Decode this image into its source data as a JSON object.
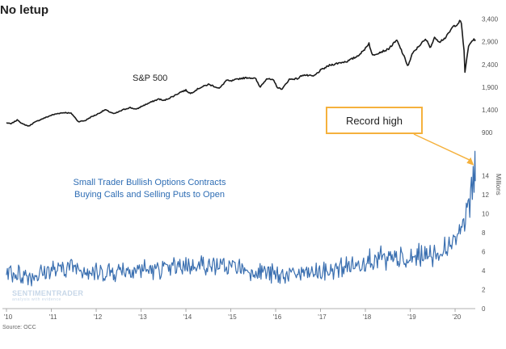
{
  "page": {
    "title": "No letup",
    "source": "Source: OCC",
    "callout": "Record high",
    "watermark": "SENTIMENTRADER",
    "watermark_sub": "analysis with evidence",
    "colors": {
      "sp": "#1a1a1a",
      "options": "#3a6fb0",
      "callout_border": "#f5b13d",
      "label": "#2e6db4"
    }
  },
  "chart_data": {
    "type": "line",
    "title": "No letup",
    "x_tick_labels": [
      "'10",
      "'11",
      "'12",
      "'13",
      "'14",
      "'15",
      "'16",
      "'17",
      "'18",
      "'19",
      "'20"
    ],
    "xlim": [
      2010,
      2020.45
    ],
    "panels": [
      {
        "name": "sp500",
        "series_label": "S&P 500",
        "ylim": [
          650,
          3500
        ],
        "yticks": [
          900,
          1400,
          1900,
          2400,
          2900,
          3400
        ],
        "ytick_labels": [
          "900",
          "1,400",
          "1,900",
          "2,400",
          "2,900",
          "3,400"
        ],
        "points": [
          [
            2010.0,
            1115
          ],
          [
            2010.1,
            1090
          ],
          [
            2010.25,
            1180
          ],
          [
            2010.35,
            1090
          ],
          [
            2010.5,
            1040
          ],
          [
            2010.6,
            1110
          ],
          [
            2010.75,
            1180
          ],
          [
            2010.9,
            1240
          ],
          [
            2011.0,
            1280
          ],
          [
            2011.15,
            1320
          ],
          [
            2011.3,
            1340
          ],
          [
            2011.45,
            1320
          ],
          [
            2011.6,
            1140
          ],
          [
            2011.75,
            1160
          ],
          [
            2011.9,
            1250
          ],
          [
            2012.0,
            1290
          ],
          [
            2012.2,
            1400
          ],
          [
            2012.4,
            1310
          ],
          [
            2012.6,
            1400
          ],
          [
            2012.75,
            1450
          ],
          [
            2012.9,
            1410
          ],
          [
            2013.0,
            1470
          ],
          [
            2013.2,
            1560
          ],
          [
            2013.4,
            1640
          ],
          [
            2013.5,
            1600
          ],
          [
            2013.7,
            1690
          ],
          [
            2013.9,
            1800
          ],
          [
            2014.0,
            1830
          ],
          [
            2014.1,
            1760
          ],
          [
            2014.3,
            1880
          ],
          [
            2014.5,
            1960
          ],
          [
            2014.6,
            1930
          ],
          [
            2014.75,
            1870
          ],
          [
            2014.9,
            2050
          ],
          [
            2015.0,
            2030
          ],
          [
            2015.2,
            2090
          ],
          [
            2015.4,
            2110
          ],
          [
            2015.55,
            2090
          ],
          [
            2015.65,
            1900
          ],
          [
            2015.8,
            2090
          ],
          [
            2015.95,
            2050
          ],
          [
            2016.05,
            1880
          ],
          [
            2016.15,
            1860
          ],
          [
            2016.3,
            2070
          ],
          [
            2016.5,
            2090
          ],
          [
            2016.6,
            2170
          ],
          [
            2016.85,
            2140
          ],
          [
            2017.0,
            2270
          ],
          [
            2017.2,
            2380
          ],
          [
            2017.4,
            2430
          ],
          [
            2017.6,
            2470
          ],
          [
            2017.8,
            2570
          ],
          [
            2017.95,
            2690
          ],
          [
            2018.08,
            2870
          ],
          [
            2018.15,
            2600
          ],
          [
            2018.3,
            2660
          ],
          [
            2018.5,
            2730
          ],
          [
            2018.7,
            2930
          ],
          [
            2018.8,
            2720
          ],
          [
            2018.95,
            2360
          ],
          [
            2019.05,
            2640
          ],
          [
            2019.25,
            2870
          ],
          [
            2019.35,
            2950
          ],
          [
            2019.45,
            2780
          ],
          [
            2019.55,
            3000
          ],
          [
            2019.65,
            2900
          ],
          [
            2019.8,
            3000
          ],
          [
            2019.95,
            3230
          ],
          [
            2020.05,
            3290
          ],
          [
            2020.13,
            3380
          ],
          [
            2020.2,
            2700
          ],
          [
            2020.22,
            2240
          ],
          [
            2020.3,
            2800
          ],
          [
            2020.38,
            2930
          ],
          [
            2020.45,
            2950
          ]
        ]
      },
      {
        "name": "small_trader_bullish_options",
        "series_label": [
          "Small Trader Bullish Options Contracts",
          "Buying Calls and Selling Puts to Open"
        ],
        "ylabel": "Millions",
        "ylim": [
          0,
          15.5
        ],
        "yticks": [
          0,
          2,
          4,
          6,
          8,
          10,
          12,
          14
        ],
        "ytick_labels": [
          "0",
          "2",
          "4",
          "6",
          "8",
          "10",
          "12",
          "14"
        ],
        "points": [
          [
            2010.0,
            4.0
          ],
          [
            2010.25,
            3.7
          ],
          [
            2010.5,
            3.4
          ],
          [
            2010.75,
            3.7
          ],
          [
            2011.0,
            4.1
          ],
          [
            2011.25,
            4.4
          ],
          [
            2011.5,
            4.5
          ],
          [
            2011.75,
            4.1
          ],
          [
            2012.0,
            3.7
          ],
          [
            2012.25,
            3.8
          ],
          [
            2012.5,
            4.0
          ],
          [
            2012.75,
            4.1
          ],
          [
            2013.0,
            4.1
          ],
          [
            2013.25,
            4.0
          ],
          [
            2013.5,
            4.2
          ],
          [
            2013.75,
            4.3
          ],
          [
            2014.0,
            4.4
          ],
          [
            2014.25,
            4.7
          ],
          [
            2014.5,
            4.7
          ],
          [
            2014.75,
            4.4
          ],
          [
            2015.0,
            4.2
          ],
          [
            2015.25,
            4.2
          ],
          [
            2015.5,
            4.0
          ],
          [
            2015.75,
            3.8
          ],
          [
            2016.0,
            3.5
          ],
          [
            2016.25,
            3.5
          ],
          [
            2016.5,
            3.7
          ],
          [
            2016.75,
            3.8
          ],
          [
            2017.0,
            3.8
          ],
          [
            2017.25,
            4.0
          ],
          [
            2017.5,
            4.3
          ],
          [
            2017.75,
            4.5
          ],
          [
            2018.0,
            5.1
          ],
          [
            2018.25,
            5.2
          ],
          [
            2018.5,
            5.1
          ],
          [
            2018.75,
            5.1
          ],
          [
            2019.0,
            5.1
          ],
          [
            2019.25,
            5.5
          ],
          [
            2019.5,
            5.7
          ],
          [
            2019.75,
            6.1
          ],
          [
            2019.9,
            6.6
          ],
          [
            2020.0,
            7.0
          ],
          [
            2020.1,
            8.6
          ],
          [
            2020.18,
            10.0
          ],
          [
            2020.22,
            8.8
          ],
          [
            2020.28,
            11.0
          ],
          [
            2020.32,
            10.2
          ],
          [
            2020.36,
            12.6
          ],
          [
            2020.4,
            13.3
          ],
          [
            2020.43,
            14.2
          ],
          [
            2020.45,
            14.5
          ]
        ]
      }
    ]
  }
}
